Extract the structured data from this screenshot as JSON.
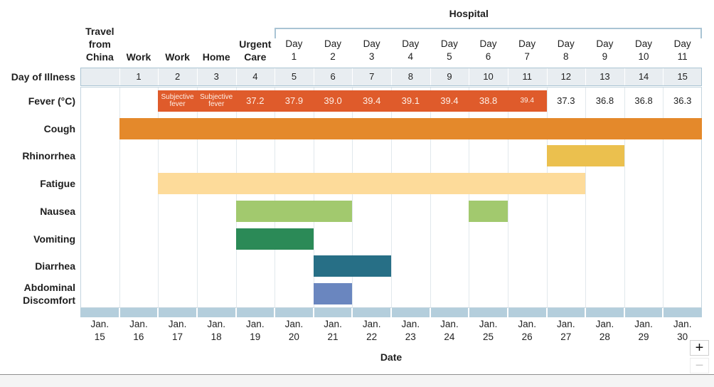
{
  "chart_data": {
    "type": "bar",
    "orientation": "horizontal",
    "xlabel": "Date",
    "categories": [
      "Jan. 15",
      "Jan. 16",
      "Jan. 17",
      "Jan. 18",
      "Jan. 19",
      "Jan. 20",
      "Jan. 21",
      "Jan. 22",
      "Jan. 23",
      "Jan. 24",
      "Jan. 25",
      "Jan. 26",
      "Jan. 27",
      "Jan. 28",
      "Jan. 29",
      "Jan. 30"
    ],
    "location_row": {
      "labels": [
        "Travel from China",
        "Work",
        "Work",
        "Home",
        "Urgent Care",
        "Day 1",
        "Day 2",
        "Day 3",
        "Day 4",
        "Day 5",
        "Day 6",
        "Day 7",
        "Day 8",
        "Day 9",
        "Day 10",
        "Day 11"
      ],
      "hospital": {
        "label": "Hospital",
        "start": "Jan. 20",
        "end": "Jan. 30"
      }
    },
    "day_of_illness": {
      "label": "Day of Illness",
      "values": [
        "",
        "1",
        "2",
        "3",
        "4",
        "5",
        "6",
        "7",
        "8",
        "9",
        "10",
        "11",
        "12",
        "13",
        "14",
        "15"
      ]
    },
    "series": [
      {
        "name": "Fever (°C)",
        "color": "#df5b2b",
        "spans": [
          {
            "start": "Jan. 17",
            "end": "Jan. 26"
          }
        ],
        "values": [
          "",
          "",
          "Subjective fever",
          "Subjective fever",
          "37.2",
          "37.9",
          "39.0",
          "39.4",
          "39.1",
          "39.4",
          "38.8",
          "39.4",
          "37.3",
          "36.8",
          "36.8",
          "36.3"
        ]
      },
      {
        "name": "Cough",
        "color": "#e4892b",
        "spans": [
          {
            "start": "Jan. 16",
            "end": "Jan. 30"
          }
        ]
      },
      {
        "name": "Rhinorrhea",
        "color": "#ebc04e",
        "spans": [
          {
            "start": "Jan. 27",
            "end": "Jan. 28"
          }
        ]
      },
      {
        "name": "Fatigue",
        "color": "#fddb9a",
        "spans": [
          {
            "start": "Jan. 17",
            "end": "Jan. 27"
          }
        ]
      },
      {
        "name": "Nausea",
        "color": "#a2c96e",
        "spans": [
          {
            "start": "Jan. 19",
            "end": "Jan. 21"
          },
          {
            "start": "Jan. 25",
            "end": "Jan. 25"
          }
        ]
      },
      {
        "name": "Vomiting",
        "color": "#2b8a57",
        "spans": [
          {
            "start": "Jan. 19",
            "end": "Jan. 20"
          }
        ]
      },
      {
        "name": "Diarrhea",
        "color": "#276f86",
        "spans": [
          {
            "start": "Jan. 21",
            "end": "Jan. 22"
          }
        ]
      },
      {
        "name": "Abdominal Discomfort",
        "color": "#6a86bf",
        "spans": [
          {
            "start": "Jan. 21",
            "end": "Jan. 21"
          }
        ]
      }
    ],
    "grid": true
  },
  "controls": {
    "zoom_in": "+",
    "zoom_out": "−"
  }
}
